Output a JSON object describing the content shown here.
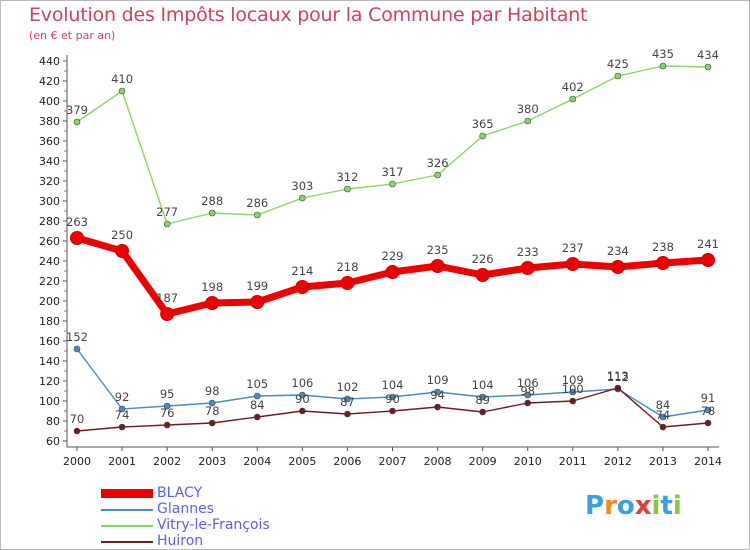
{
  "title": "Evolution des Impôts locaux pour la Commune par Habitant",
  "subtitle": "(en € et par an)",
  "logo": {
    "text": "Proxiti",
    "colors": [
      "#3aa0e0",
      "#f08a1c",
      "#3aa0e0",
      "#e23c3c",
      "#8cc63e",
      "#3aa0e0",
      "#8cc63e"
    ]
  },
  "chart_data": {
    "type": "line",
    "title": "Evolution des Impôts locaux pour la Commune par Habitant",
    "subtitle": "(en € et par an)",
    "xlabel": "",
    "ylabel": "",
    "x": [
      "2000",
      "2001",
      "2002",
      "2003",
      "2004",
      "2005",
      "2006",
      "2007",
      "2008",
      "2009",
      "2010",
      "2011",
      "2012",
      "2013",
      "2014"
    ],
    "ylim": [
      60,
      440
    ],
    "yticks": [
      60,
      80,
      100,
      120,
      140,
      160,
      180,
      200,
      220,
      240,
      260,
      280,
      300,
      320,
      340,
      360,
      380,
      400,
      420,
      440
    ],
    "grid": false,
    "legend_position": "bottom-left",
    "series": [
      {
        "name": "BLACY",
        "color": "#ee0000",
        "emphasis": true,
        "values": [
          263,
          250,
          187,
          198,
          199,
          214,
          218,
          229,
          235,
          226,
          233,
          237,
          234,
          238,
          241
        ]
      },
      {
        "name": "Glannes",
        "color": "#4a8bc2",
        "emphasis": false,
        "values": [
          152,
          92,
          95,
          98,
          105,
          106,
          102,
          104,
          109,
          104,
          106,
          109,
          112,
          84,
          91
        ]
      },
      {
        "name": "Vitry-le-François",
        "color": "#8ad46a",
        "emphasis": false,
        "values": [
          379,
          410,
          277,
          288,
          286,
          303,
          312,
          317,
          326,
          365,
          380,
          402,
          425,
          435,
          434
        ]
      },
      {
        "name": "Huiron",
        "color": "#6e1c22",
        "emphasis": false,
        "values": [
          70,
          74,
          76,
          78,
          84,
          90,
          87,
          90,
          94,
          89,
          98,
          100,
          113,
          74,
          78
        ]
      }
    ]
  }
}
